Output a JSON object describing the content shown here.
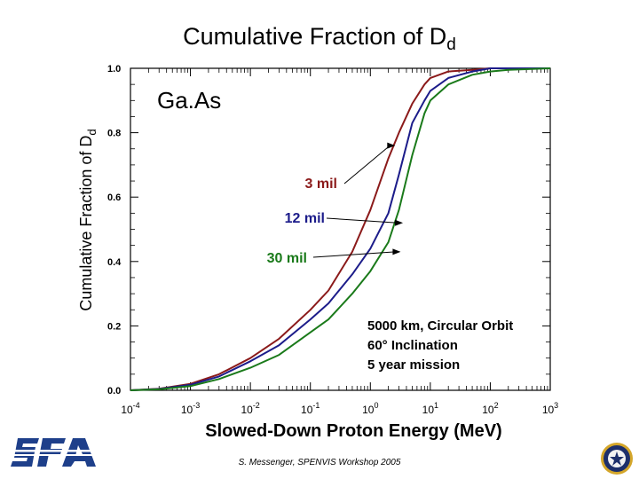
{
  "slide": {
    "title_main": "Cumulative Fraction of D",
    "title_sub": "d",
    "footer": "S. Messenger, SPENVIS Workshop 2005"
  },
  "icons": {
    "left_logo": "sfa-logo",
    "right_logo": "navy-seal"
  },
  "chart_data": {
    "type": "line",
    "title": "Ga.As",
    "xlabel": "Slowed-Down Proton Energy (MeV)",
    "ylabel_main": "Cumulative Fraction of D",
    "ylabel_sub": "d",
    "xscale": "log",
    "xlim": [
      0.0001,
      1000
    ],
    "ylim": [
      0,
      1
    ],
    "xticks": [
      {
        "value": 0.0001,
        "base": "10",
        "exp": "-4"
      },
      {
        "value": 0.001,
        "base": "10",
        "exp": "-3"
      },
      {
        "value": 0.01,
        "base": "10",
        "exp": "-2"
      },
      {
        "value": 0.1,
        "base": "10",
        "exp": "-1"
      },
      {
        "value": 1,
        "base": "10",
        "exp": "0"
      },
      {
        "value": 10,
        "base": "10",
        "exp": "1"
      },
      {
        "value": 100,
        "base": "10",
        "exp": "2"
      },
      {
        "value": 1000,
        "base": "10",
        "exp": "3"
      }
    ],
    "yticks": [
      "0.0",
      "0.2",
      "0.4",
      "0.6",
      "0.8",
      "1.0"
    ],
    "grid": false,
    "series": [
      {
        "name": "3 mil",
        "color": "#8b1a1a",
        "x": [
          0.0001,
          0.0003,
          0.001,
          0.003,
          0.01,
          0.03,
          0.1,
          0.2,
          0.5,
          1,
          2,
          3,
          5,
          8,
          10,
          20,
          50,
          100,
          200,
          1000
        ],
        "y": [
          0,
          0.005,
          0.02,
          0.05,
          0.1,
          0.16,
          0.25,
          0.31,
          0.43,
          0.56,
          0.72,
          0.8,
          0.89,
          0.95,
          0.97,
          0.99,
          0.995,
          1.0,
          1.0,
          1.0
        ]
      },
      {
        "name": "12 mil",
        "color": "#1c1c8a",
        "x": [
          0.0001,
          0.0003,
          0.001,
          0.003,
          0.01,
          0.03,
          0.1,
          0.2,
          0.5,
          1,
          2,
          3,
          5,
          8,
          10,
          20,
          50,
          100,
          200,
          1000
        ],
        "y": [
          0,
          0.004,
          0.017,
          0.043,
          0.09,
          0.14,
          0.22,
          0.27,
          0.36,
          0.44,
          0.55,
          0.67,
          0.83,
          0.9,
          0.93,
          0.97,
          0.99,
          1.0,
          1.0,
          1.0
        ]
      },
      {
        "name": "30 mil",
        "color": "#1a7a1a",
        "x": [
          0.0001,
          0.0003,
          0.001,
          0.003,
          0.01,
          0.03,
          0.1,
          0.2,
          0.5,
          1,
          2,
          3,
          5,
          8,
          10,
          20,
          50,
          100,
          200,
          1000
        ],
        "y": [
          0,
          0.003,
          0.013,
          0.035,
          0.07,
          0.11,
          0.18,
          0.22,
          0.3,
          0.37,
          0.46,
          0.56,
          0.73,
          0.86,
          0.9,
          0.95,
          0.98,
          0.99,
          0.995,
          1.0
        ]
      }
    ],
    "arrow_targets": [
      {
        "series": "3 mil",
        "x": 2.6,
        "y": 0.76
      },
      {
        "series": "12 mil",
        "x": 3.5,
        "y": 0.52
      },
      {
        "series": "30 mil",
        "x": 3.2,
        "y": 0.43
      }
    ],
    "annotation": [
      "5000 km, Circular Orbit",
      "60° Inclination",
      "5 year mission"
    ]
  }
}
